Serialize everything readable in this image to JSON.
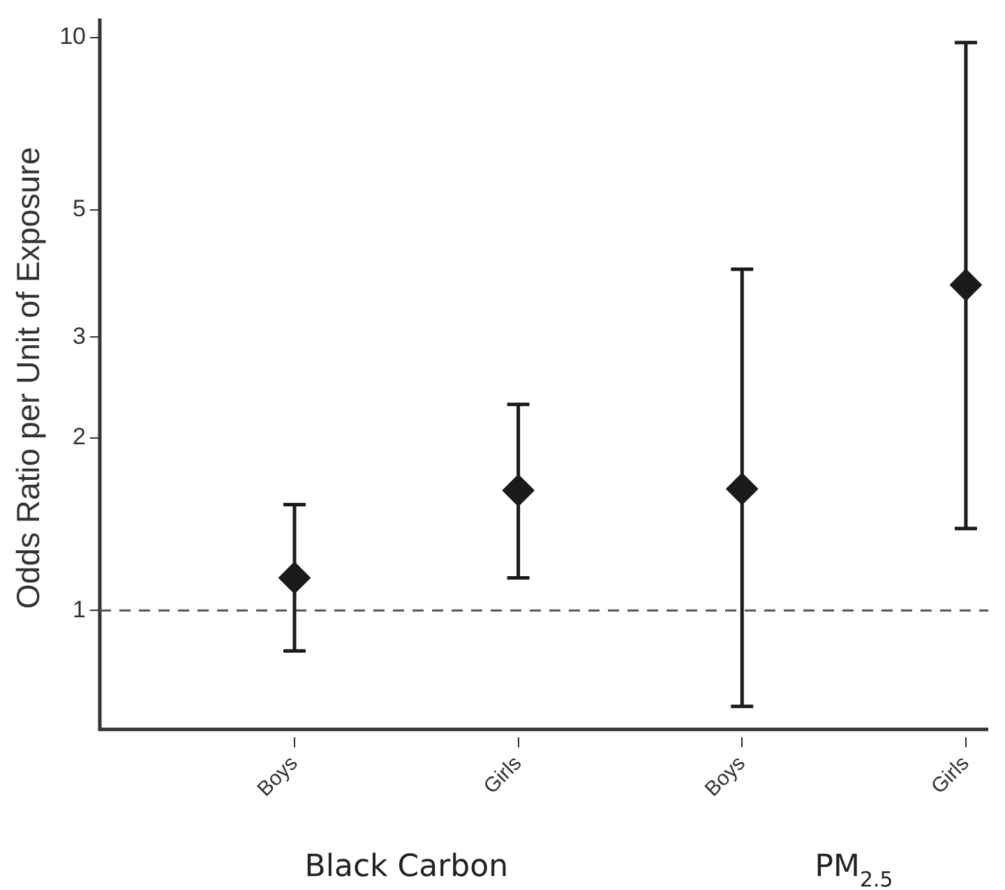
{
  "chart_data": {
    "type": "scatter",
    "ylabel": "Odds Ratio per Unit of Exposure",
    "categories": [
      "Boys",
      "Girls",
      "Boys",
      "Girls"
    ],
    "series": [
      {
        "color": "#1a1a1a",
        "values": [
          1.14,
          1.62,
          1.63,
          3.7
        ],
        "errors": [
          [
            0.85,
            1.53
          ],
          [
            1.14,
            2.29
          ],
          [
            0.68,
            3.94
          ],
          [
            1.39,
            9.8
          ]
        ]
      }
    ],
    "marker": "diamond",
    "log": "y",
    "ylim": [
      0.62,
      10.8
    ],
    "yticks": [
      1,
      2,
      3,
      5,
      10
    ],
    "grid": false,
    "legend": false,
    "ref_lines": [
      {
        "axis": "y",
        "value": 1,
        "color": "#555555",
        "line_style": "dashed"
      }
    ],
    "annotations": [
      "Black Carbon",
      "PM$_{2.5}$"
    ]
  }
}
